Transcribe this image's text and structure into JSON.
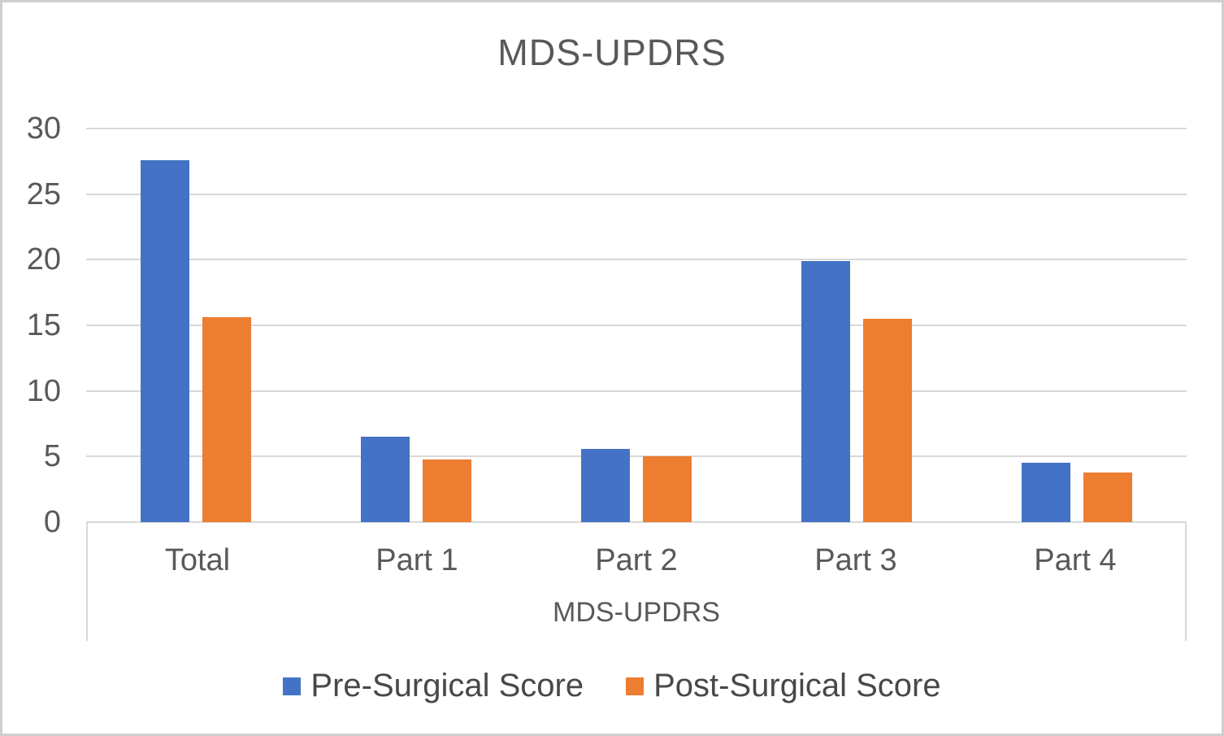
{
  "chart_data": {
    "type": "bar",
    "title": "MDS-UPDRS",
    "xlabel": "MDS-UPDRS",
    "ylabel": "",
    "categories": [
      "Total",
      "Part 1",
      "Part 2",
      "Part 3",
      "Part 4"
    ],
    "series": [
      {
        "name": "Pre-Surgical Score",
        "color": "#4472C4",
        "values": [
          27.6,
          6.5,
          5.6,
          19.9,
          4.5
        ]
      },
      {
        "name": "Post-Surgical Score",
        "color": "#ED7D31",
        "values": [
          15.6,
          4.8,
          5.0,
          15.5,
          3.8
        ]
      }
    ],
    "ylim": [
      0,
      30
    ],
    "yticks": [
      30,
      25,
      20,
      15,
      10,
      5,
      0
    ],
    "grid": true,
    "legend_position": "bottom",
    "colors": {
      "text": "#595959",
      "gridline": "#d9d9d9",
      "background": "#ffffff",
      "frame_border": "#cfcfcf"
    }
  }
}
